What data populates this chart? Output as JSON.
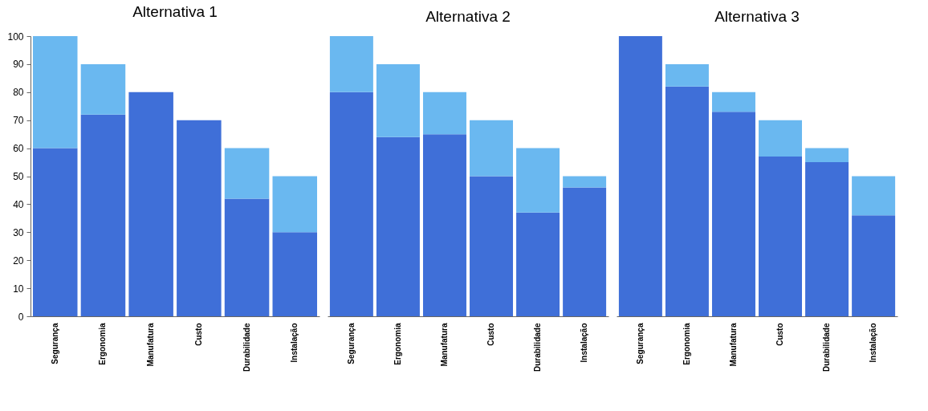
{
  "chart_data": [
    {
      "type": "bar",
      "title": "Alternativa 1",
      "categories": [
        "Segurança",
        "Ergonomia",
        "Manufatura",
        "Custo",
        "Durabilidade",
        "Instalação"
      ],
      "stacked": true,
      "ylim": [
        0,
        100
      ],
      "yticks": [
        0,
        10,
        20,
        30,
        40,
        50,
        60,
        70,
        80,
        90,
        100
      ],
      "grid": false,
      "legend": false,
      "series": [
        {
          "color": "#3f6fd8",
          "values": [
            60,
            72,
            80,
            70,
            42,
            30
          ]
        },
        {
          "color": "#6ab8f0",
          "values": [
            40,
            18,
            0,
            0,
            18,
            20
          ]
        }
      ]
    },
    {
      "type": "bar",
      "title": "Alternativa 2",
      "categories": [
        "Segurança",
        "Ergonomia",
        "Manufatura",
        "Custo",
        "Durabilidade",
        "Instalação"
      ],
      "stacked": true,
      "ylim": [
        0,
        100
      ],
      "yticks": [
        0,
        10,
        20,
        30,
        40,
        50,
        60,
        70,
        80,
        90,
        100
      ],
      "tick_labels": "x",
      "grid": false,
      "legend": false,
      "series": [
        {
          "color": "#3f6fd8",
          "values": [
            80,
            64,
            65,
            50,
            37,
            46
          ]
        },
        {
          "color": "#6ab8f0",
          "values": [
            20,
            26,
            15,
            20,
            23,
            4
          ]
        }
      ]
    },
    {
      "type": "bar",
      "title": "Alternativa 3",
      "categories": [
        "Segurança",
        "Ergonomia",
        "Manufatura",
        "Custo",
        "Durabilidade",
        "Instalação"
      ],
      "stacked": true,
      "ylim": [
        0,
        100
      ],
      "yticks": [
        0,
        10,
        20,
        30,
        40,
        50,
        60,
        70,
        80,
        90,
        100
      ],
      "tick_labels": "x",
      "grid": false,
      "legend": false,
      "series": [
        {
          "color": "#3f6fd8",
          "values": [
            100,
            82,
            73,
            57,
            55,
            36
          ]
        },
        {
          "color": "#6ab8f0",
          "values": [
            0,
            8,
            7,
            13,
            5,
            14
          ]
        }
      ]
    }
  ]
}
